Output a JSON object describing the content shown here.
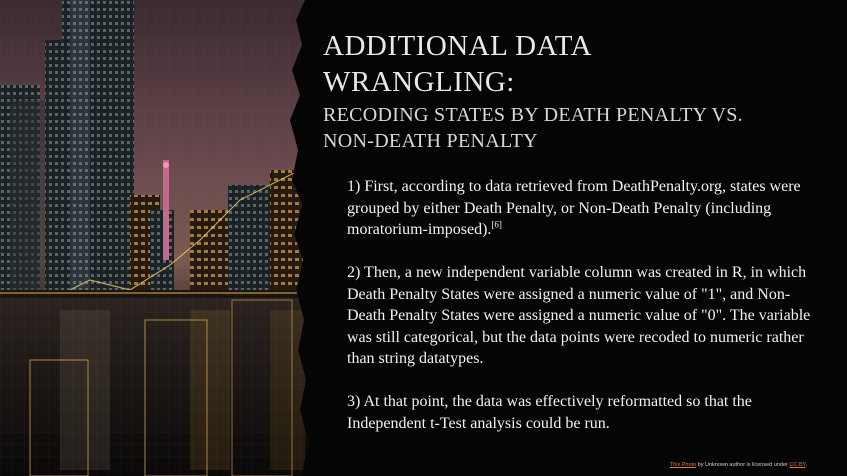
{
  "slide": {
    "title_line1": "ADDITIONAL DATA",
    "title_line2": "WRANGLING:",
    "subtitle_line1": "RECODING STATES BY DEATH PENALTY VS.",
    "subtitle_line2": "NON-DEATH PENALTY",
    "paragraphs": [
      {
        "text": "1) First, according to data retrieved from DeathPenalty.org, states were grouped by either Death Penalty, or Non-Death Penalty (including moratorium-imposed).",
        "citation": "[6]"
      },
      {
        "text": "2) Then, a new independent variable column was created in R, in which Death Penalty States were assigned a numeric value of \"1\", and Non-Death Penalty States were assigned a numeric value of \"0\". The variable was still categorical, but the data points were recoded to numeric rather than string datatypes."
      },
      {
        "text": "3) At that point, the data was effectively reformatted so that the Independent t-Test analysis could be run."
      }
    ],
    "attribution": {
      "link1": "This Photo",
      "middle": " by Unknown author is licensed under ",
      "link2": "CC BY",
      "end": "."
    }
  },
  "colors": {
    "background": "#050505",
    "title": "#e9e9e9",
    "body_text": "#f2f2f2",
    "link": "#e07a2e",
    "photo_glow": "#e8b04a"
  }
}
